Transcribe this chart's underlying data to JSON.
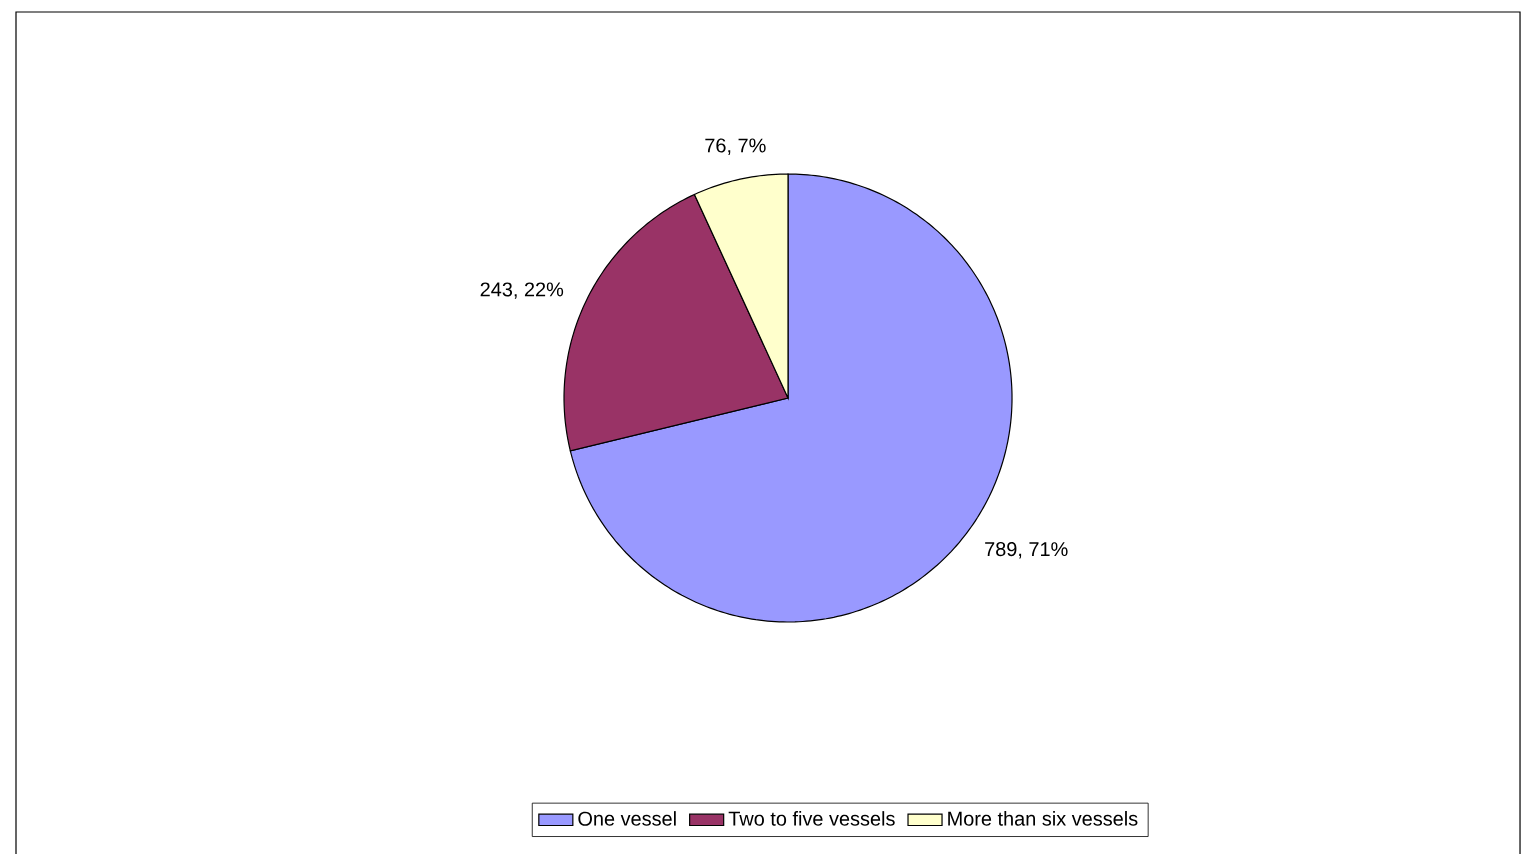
{
  "chart_data": {
    "type": "pie",
    "categories": [
      "One vessel",
      "Two to five vessels",
      "More than six vessels"
    ],
    "values": [
      789,
      243,
      76
    ],
    "colors": [
      "#9999ff",
      "#993366",
      "#ffffcc"
    ],
    "value_labels": [
      "789, 71%",
      "243, 22%",
      "76, 7%"
    ],
    "legend": "bottom"
  }
}
